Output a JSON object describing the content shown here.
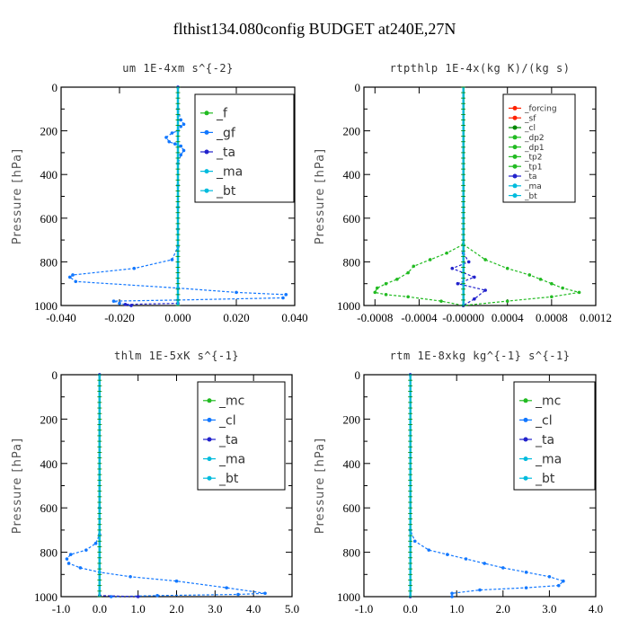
{
  "title": "flthist134.080config  BUDGET at240E,27N",
  "colors": {
    "green": "#22bb22",
    "blue": "#1177ff",
    "navy": "#2222cc",
    "cyan": "#00bbdd",
    "red": "#ff2200",
    "darkgreen": "#008800",
    "black": "#000000"
  },
  "chart_data": [
    {
      "type": "line",
      "title": "um   1E-4xm s^{-2}",
      "ylabel": "Pressure [hPa]",
      "xlim": [
        -0.04,
        0.04
      ],
      "ylim": [
        1000,
        0
      ],
      "xticks": [
        -0.04,
        -0.02,
        0.0,
        0.02,
        0.04
      ],
      "xtick_labels": [
        "-0.040",
        "-0.020",
        "0.000",
        "0.020",
        "0.040"
      ],
      "yticks": [
        0,
        200,
        400,
        600,
        800,
        1000
      ],
      "ytick_labels": [
        "0",
        "200",
        "400",
        "600",
        "800",
        "1000"
      ],
      "legend": [
        "_f",
        "_gf",
        "_ta",
        "_ma",
        "_bt"
      ],
      "series": [
        {
          "name": "_f",
          "color": "green",
          "style": "solid",
          "x": [
            0,
            0
          ],
          "y": [
            0,
            1000
          ]
        },
        {
          "name": "_gf",
          "color": "blue",
          "style": "dashed",
          "x": [
            0.0,
            0.0,
            0.001,
            0.002,
            0.001,
            0.0,
            -0.002,
            -0.004,
            -0.003,
            -0.001,
            0.001,
            0.002,
            0.001,
            0.0,
            0.0,
            0.0,
            0.0,
            0.0,
            -0.002,
            -0.015,
            -0.036,
            -0.037,
            -0.035,
            0.0,
            0.02,
            0.037,
            0.036,
            0.0,
            -0.022,
            -0.02,
            -0.016
          ],
          "y": [
            0,
            100,
            150,
            170,
            180,
            200,
            210,
            230,
            250,
            260,
            270,
            290,
            310,
            350,
            450,
            550,
            650,
            730,
            790,
            830,
            860,
            870,
            890,
            920,
            940,
            950,
            965,
            975,
            980,
            990,
            1000
          ]
        },
        {
          "name": "_ta",
          "color": "navy",
          "style": "dashed",
          "x": [
            0,
            0,
            -0.018,
            -0.016
          ],
          "y": [
            0,
            990,
            995,
            1000
          ]
        },
        {
          "name": "_ma",
          "color": "cyan",
          "style": "solid",
          "x": [
            0,
            0
          ],
          "y": [
            0,
            1000
          ]
        },
        {
          "name": "_bt",
          "color": "cyan",
          "style": "solid",
          "x": [
            0,
            0
          ],
          "y": [
            0,
            1000
          ]
        }
      ]
    },
    {
      "type": "line",
      "title": "rtpthlp   1E-4x(kg K)/(kg s)",
      "ylabel": "Pressure [hPa]",
      "xlim": [
        -0.0009,
        0.0012
      ],
      "ylim": [
        1000,
        0
      ],
      "xticks": [
        -0.0008,
        -0.0004,
        0.0,
        0.0004,
        0.0008,
        0.0012
      ],
      "xtick_labels": [
        "-0.0008",
        "-0.0004",
        "-0.00000",
        "0.0004",
        "0.0008",
        "0.0012"
      ],
      "yticks": [
        0,
        200,
        400,
        600,
        800,
        1000
      ],
      "ytick_labels": [
        "0",
        "200",
        "400",
        "600",
        "800",
        "1000"
      ],
      "legend": [
        "_forcing",
        "_sf",
        "_cl",
        "_dp2",
        "_dp1",
        "_tp2",
        "_tp1",
        "_ta",
        "_ma",
        "_bt"
      ],
      "series": [
        {
          "name": "_forcing",
          "color": "red",
          "style": "solid",
          "x": [
            0,
            0
          ],
          "y": [
            0,
            1000
          ]
        },
        {
          "name": "_sf",
          "color": "red",
          "style": "solid",
          "x": [
            0,
            0
          ],
          "y": [
            0,
            1000
          ]
        },
        {
          "name": "_cl",
          "color": "darkgreen",
          "style": "solid",
          "x": [
            0,
            0
          ],
          "y": [
            0,
            1000
          ]
        },
        {
          "name": "_dp2",
          "color": "green",
          "style": "solid",
          "x": [
            0,
            0
          ],
          "y": [
            0,
            1000
          ]
        },
        {
          "name": "_dp1",
          "color": "green",
          "style": "solid",
          "x": [
            0,
            0
          ],
          "y": [
            0,
            1000
          ]
        },
        {
          "name": "_tp2",
          "color": "green",
          "style": "dashed",
          "x": [
            0,
            -0.00015,
            -0.0003,
            -0.00045,
            -0.0005,
            -0.0006,
            -0.0007,
            -0.00078,
            -0.0008,
            -0.0007,
            -0.0005,
            -0.0002,
            0
          ],
          "y": [
            720,
            760,
            790,
            820,
            850,
            880,
            900,
            920,
            940,
            950,
            960,
            980,
            1000
          ]
        },
        {
          "name": "_tp1",
          "color": "green",
          "style": "dashed",
          "x": [
            0,
            0.0002,
            0.0004,
            0.0006,
            0.0007,
            0.0008,
            0.0009,
            0.00105,
            0.0008,
            0.0004,
            0
          ],
          "y": [
            720,
            790,
            830,
            860,
            880,
            900,
            920,
            940,
            960,
            980,
            1000
          ]
        },
        {
          "name": "_ta",
          "color": "navy",
          "style": "dashed",
          "x": [
            0,
            5e-05,
            -0.0001,
            0.0001,
            -5e-05,
            0.0002,
            0.0001,
            0
          ],
          "y": [
            760,
            800,
            830,
            870,
            900,
            930,
            970,
            1000
          ]
        },
        {
          "name": "_ma",
          "color": "cyan",
          "style": "solid",
          "x": [
            0,
            0
          ],
          "y": [
            0,
            1000
          ]
        },
        {
          "name": "_bt",
          "color": "cyan",
          "style": "solid",
          "x": [
            0,
            0
          ],
          "y": [
            0,
            1000
          ]
        }
      ]
    },
    {
      "type": "line",
      "title": "thlm   1E-5xK s^{-1}",
      "ylabel": "Pressure [hPa]",
      "xlim": [
        -1.0,
        5.0
      ],
      "ylim": [
        1000,
        0
      ],
      "xticks": [
        -1,
        0,
        1,
        2,
        3,
        4,
        5
      ],
      "xtick_labels": [
        "-1.0",
        "0.0",
        "1.0",
        "2.0",
        "3.0",
        "4.0",
        "5.0"
      ],
      "yticks": [
        0,
        200,
        400,
        600,
        800,
        1000
      ],
      "ytick_labels": [
        "0",
        "200",
        "400",
        "600",
        "800",
        "1000"
      ],
      "legend": [
        "_mc",
        "_cl",
        "_ta",
        "_ma",
        "_bt"
      ],
      "series": [
        {
          "name": "_mc",
          "color": "green",
          "style": "solid",
          "x": [
            0,
            0
          ],
          "y": [
            0,
            1000
          ]
        },
        {
          "name": "_cl",
          "color": "blue",
          "style": "dashed",
          "x": [
            0,
            0,
            0,
            -0.1,
            -0.35,
            -0.75,
            -0.85,
            -0.8,
            -0.5,
            0,
            0.8,
            2.0,
            3.3,
            4.3,
            3.6,
            1.5,
            0.3
          ],
          "y": [
            0,
            600,
            720,
            760,
            790,
            810,
            830,
            850,
            870,
            890,
            910,
            930,
            960,
            985,
            990,
            995,
            1000
          ]
        },
        {
          "name": "_ta",
          "color": "navy",
          "style": "dashed",
          "x": [
            0,
            0,
            1.0
          ],
          "y": [
            0,
            995,
            1000
          ]
        },
        {
          "name": "_ma",
          "color": "cyan",
          "style": "solid",
          "x": [
            0,
            0
          ],
          "y": [
            0,
            1000
          ]
        },
        {
          "name": "_bt",
          "color": "cyan",
          "style": "solid",
          "x": [
            0,
            0
          ],
          "y": [
            0,
            1000
          ]
        }
      ]
    },
    {
      "type": "line",
      "title": "rtm   1E-8xkg kg^{-1} s^{-1}",
      "ylabel": "Pressure [hPa]",
      "xlim": [
        -1.0,
        4.0
      ],
      "ylim": [
        1000,
        0
      ],
      "xticks": [
        -1,
        0,
        1,
        2,
        3,
        4
      ],
      "xtick_labels": [
        "-1.0",
        "0.0",
        "1.0",
        "2.0",
        "3.0",
        "4.0"
      ],
      "yticks": [
        0,
        200,
        400,
        600,
        800,
        1000
      ],
      "ytick_labels": [
        "0",
        "200",
        "400",
        "600",
        "800",
        "1000"
      ],
      "legend": [
        "_mc",
        "_cl",
        "_ta",
        "_ma",
        "_bt"
      ],
      "series": [
        {
          "name": "_mc",
          "color": "green",
          "style": "solid",
          "x": [
            0,
            0
          ],
          "y": [
            0,
            1000
          ]
        },
        {
          "name": "_cl",
          "color": "blue",
          "style": "dashed",
          "x": [
            0,
            0,
            0.1,
            0.4,
            0.8,
            1.2,
            1.6,
            2.0,
            2.5,
            3.0,
            3.3,
            3.2,
            2.5,
            1.5,
            0.9,
            0.9
          ],
          "y": [
            0,
            700,
            750,
            790,
            810,
            830,
            850,
            870,
            890,
            910,
            930,
            950,
            960,
            970,
            985,
            1000
          ]
        },
        {
          "name": "_ta",
          "color": "navy",
          "style": "dashed",
          "x": [
            0,
            0
          ],
          "y": [
            0,
            1000
          ]
        },
        {
          "name": "_ma",
          "color": "cyan",
          "style": "solid",
          "x": [
            0,
            0
          ],
          "y": [
            0,
            1000
          ]
        },
        {
          "name": "_bt",
          "color": "cyan",
          "style": "solid",
          "x": [
            0,
            0
          ],
          "y": [
            0,
            1000
          ]
        }
      ]
    }
  ]
}
